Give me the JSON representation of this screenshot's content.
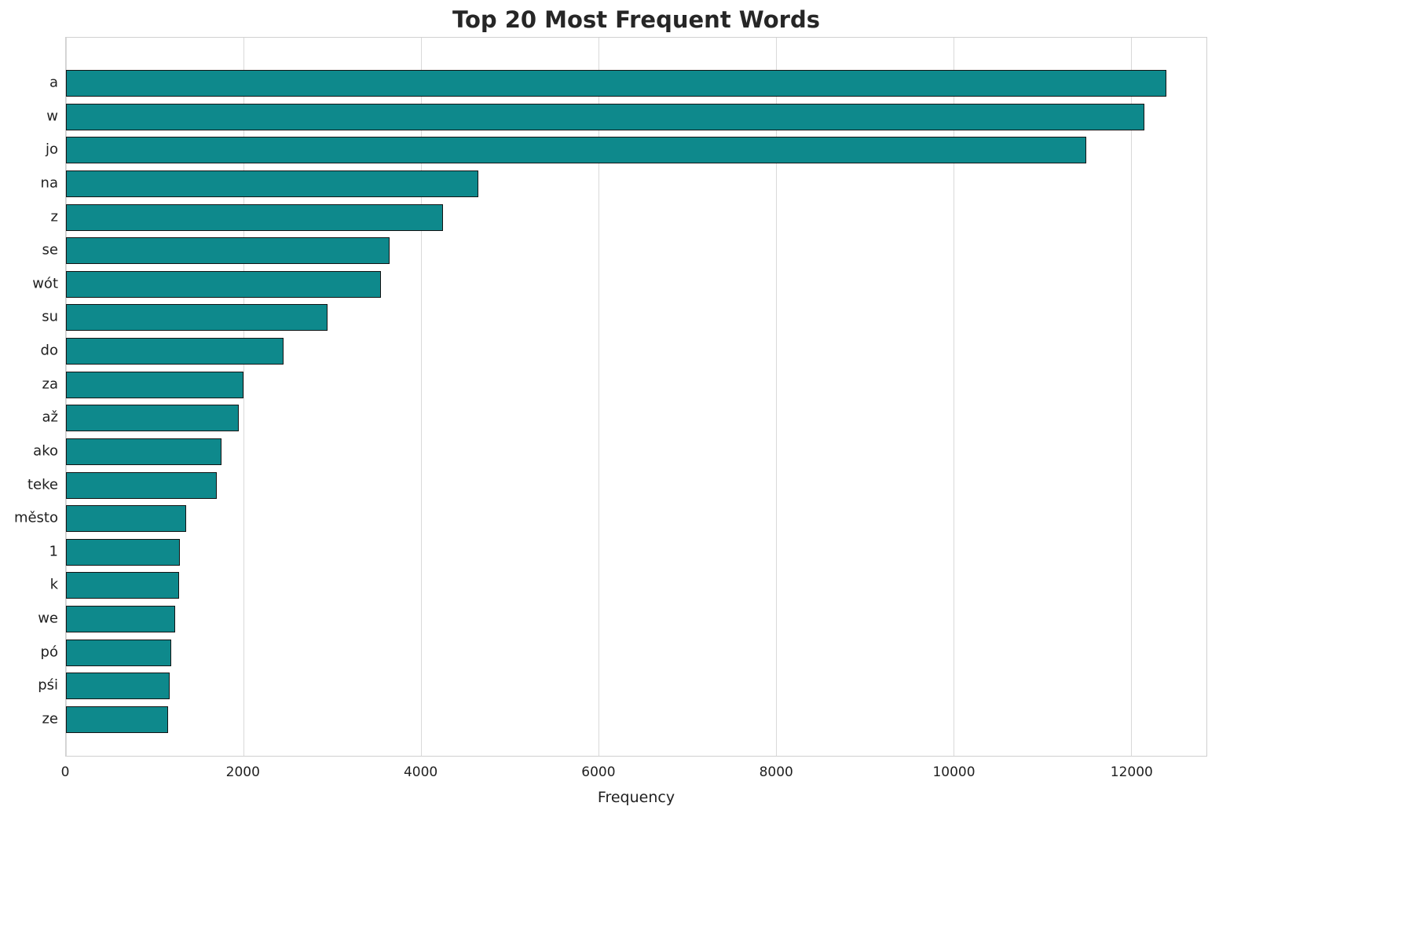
{
  "title": "Top 20 Most Frequent Words",
  "chart_data": {
    "type": "bar",
    "orientation": "horizontal",
    "title": "Top 20 Most Frequent Words",
    "xlabel": "Frequency",
    "ylabel": "",
    "categories": [
      "a",
      "w",
      "jo",
      "na",
      "z",
      "se",
      "wót",
      "su",
      "do",
      "za",
      "až",
      "ako",
      "teke",
      "město",
      "1",
      "k",
      "we",
      "pó",
      "pśi",
      "ze"
    ],
    "values": [
      12400,
      12150,
      11500,
      4650,
      4250,
      3650,
      3550,
      2950,
      2450,
      2000,
      1950,
      1750,
      1700,
      1350,
      1280,
      1270,
      1230,
      1190,
      1170,
      1150
    ],
    "xlim": [
      0,
      12850
    ],
    "xticks": [
      0,
      2000,
      4000,
      6000,
      8000,
      10000,
      12000
    ],
    "grid": "vertical",
    "legend": "none",
    "bar_color": "#0e898c",
    "bar_edge_color": "#141414",
    "background": "#ffffff"
  }
}
